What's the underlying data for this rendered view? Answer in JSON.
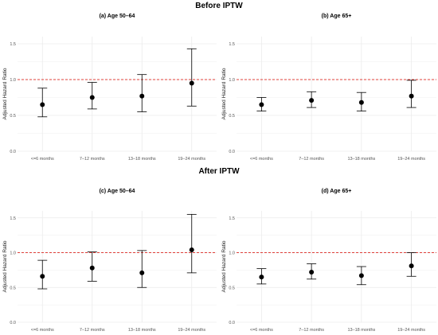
{
  "sections": [
    {
      "title": "Before IPTW"
    },
    {
      "title": "After  IPTW"
    }
  ],
  "colors": {
    "reference_line": "#e0403a",
    "marker": "#000000",
    "grid": "#ebebeb"
  },
  "chart_data": [
    {
      "type": "scatter",
      "title": "(a) Age 50–64",
      "ylabel": "Adjusted Hazard Ratio",
      "xlabel": "",
      "categories": [
        "<=6 months",
        "7–12 months",
        "13–18 months",
        "19–24 months"
      ],
      "point": [
        0.65,
        0.75,
        0.77,
        0.95
      ],
      "ci_low": [
        0.48,
        0.59,
        0.55,
        0.63
      ],
      "ci_high": [
        0.88,
        0.96,
        1.07,
        1.43
      ],
      "reference_line": 1.0,
      "ylim": [
        0,
        1.6
      ],
      "yticks": [
        "0.0",
        "0.5",
        "1.0",
        "1.5"
      ],
      "grid": true
    },
    {
      "type": "scatter",
      "title": "(b) Age 65+",
      "ylabel": "Adjusted Hazard Ratio",
      "xlabel": "",
      "categories": [
        "<=6 months",
        "7–12 months",
        "13–18 months",
        "19–24 months"
      ],
      "point": [
        0.65,
        0.71,
        0.68,
        0.77
      ],
      "ci_low": [
        0.56,
        0.61,
        0.56,
        0.61
      ],
      "ci_high": [
        0.75,
        0.83,
        0.82,
        0.99
      ],
      "reference_line": 1.0,
      "ylim": [
        0,
        1.6
      ],
      "yticks": [
        "0.0",
        "0.5",
        "1.0",
        "1.5"
      ],
      "grid": true
    },
    {
      "type": "scatter",
      "title": "(c) Age 50–64",
      "ylabel": "Adjusted Hazard Ratio",
      "xlabel": "",
      "categories": [
        "<=6 months",
        "7–12 months",
        "13–18 months",
        "19–24 months"
      ],
      "point": [
        0.66,
        0.78,
        0.71,
        1.04
      ],
      "ci_low": [
        0.48,
        0.59,
        0.5,
        0.71
      ],
      "ci_high": [
        0.89,
        1.01,
        1.03,
        1.55
      ],
      "reference_line": 1.0,
      "ylim": [
        0,
        1.6
      ],
      "yticks": [
        "0.0",
        "0.5",
        "1.0",
        "1.5"
      ],
      "grid": true
    },
    {
      "type": "scatter",
      "title": "(d) Age 65+",
      "ylabel": "Adjusted Hazard Ratio",
      "xlabel": "",
      "categories": [
        "<=6 months",
        "7–12 months",
        "13–18 months",
        "19–24 months"
      ],
      "point": [
        0.65,
        0.72,
        0.67,
        0.81
      ],
      "ci_low": [
        0.55,
        0.62,
        0.54,
        0.66
      ],
      "ci_high": [
        0.77,
        0.84,
        0.8,
        1.0
      ],
      "reference_line": 1.0,
      "ylim": [
        0,
        1.6
      ],
      "yticks": [
        "0.0",
        "0.5",
        "1.0",
        "1.5"
      ],
      "grid": true
    }
  ]
}
